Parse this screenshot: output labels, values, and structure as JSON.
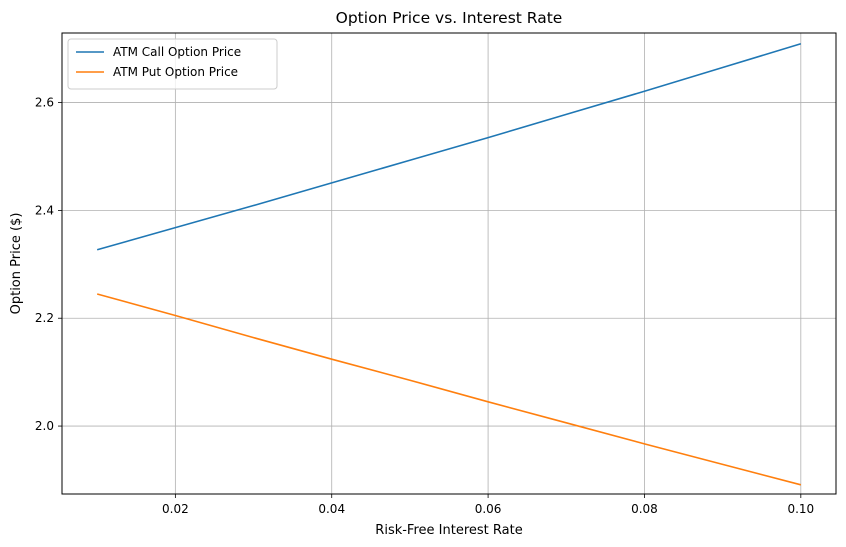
{
  "chart_data": {
    "type": "line",
    "title": "Option Price vs. Interest Rate",
    "xlabel": "Risk-Free Interest Rate",
    "ylabel": "Option Price ($)",
    "xlim": [
      0.0055,
      0.1045
    ],
    "ylim": [
      1.874,
      2.729
    ],
    "xticks": [
      0.02,
      0.04,
      0.06,
      0.08,
      0.1
    ],
    "xtick_labels": [
      "0.02",
      "0.04",
      "0.06",
      "0.08",
      "0.10"
    ],
    "yticks": [
      2.0,
      2.2,
      2.4,
      2.6
    ],
    "ytick_labels": [
      "2.0",
      "2.2",
      "2.4",
      "2.6"
    ],
    "grid": true,
    "legend_position": "top-left",
    "series": [
      {
        "name": "ATM Call Option Price",
        "color": "#1f77b4",
        "x": [
          0.01,
          0.02,
          0.03,
          0.04,
          0.05,
          0.06,
          0.07,
          0.08,
          0.09,
          0.1
        ],
        "y": [
          2.327,
          2.368,
          2.409,
          2.451,
          2.493,
          2.535,
          2.578,
          2.621,
          2.665,
          2.709
        ]
      },
      {
        "name": "ATM Put Option Price",
        "color": "#ff7f0e",
        "x": [
          0.01,
          0.02,
          0.03,
          0.04,
          0.05,
          0.06,
          0.07,
          0.08,
          0.09,
          0.1
        ],
        "y": [
          2.245,
          2.205,
          2.164,
          2.124,
          2.085,
          2.045,
          2.006,
          1.967,
          1.929,
          1.891
        ]
      }
    ]
  }
}
